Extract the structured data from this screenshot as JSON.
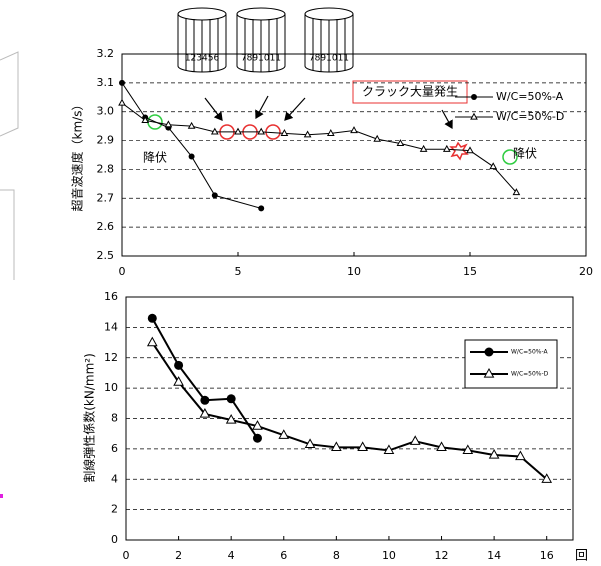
{
  "chart_data": [
    {
      "type": "line",
      "ylabel": "超音波速度（km/s）",
      "xlim": [
        0,
        20
      ],
      "ylim": [
        2.5,
        3.2
      ],
      "xticks": [
        0,
        5,
        10,
        15,
        20
      ],
      "yticks": [
        2.5,
        2.6,
        2.7,
        2.8,
        2.9,
        {
          "value": 3,
          "label": "3.0"
        },
        3.1,
        3.2
      ],
      "grid": true,
      "legend": "upper right",
      "annotations": [
        "クラック大量発生",
        "降伏",
        "降伏"
      ],
      "cylinder_labels": [
        "123456",
        "7891011",
        "7891011"
      ],
      "series": [
        {
          "name": "W/C=50%-A",
          "color": "#000000",
          "marker": "circle",
          "x": [
            0,
            1,
            2,
            3,
            4,
            6
          ],
          "values": [
            3.1,
            2.98,
            2.945,
            2.845,
            2.71,
            2.665
          ]
        },
        {
          "name": "W/C=50%-D",
          "color": "#000000",
          "marker": "triangle",
          "x": [
            0,
            1,
            2,
            3,
            4,
            5,
            6,
            7,
            8,
            9,
            10,
            11,
            12,
            13,
            14,
            15,
            16,
            17
          ],
          "values": [
            3.03,
            2.97,
            2.955,
            2.95,
            2.93,
            2.93,
            2.93,
            2.925,
            2.92,
            2.925,
            2.935,
            2.905,
            2.89,
            2.87,
            2.87,
            2.865,
            2.81,
            2.72
          ]
        }
      ]
    },
    {
      "type": "line",
      "ylabel": "割線弾性係数(kN/mm²)",
      "xunit": "回",
      "xlim": [
        0,
        17
      ],
      "ylim": [
        0,
        16
      ],
      "xticks": [
        0,
        2,
        4,
        6,
        8,
        10,
        12,
        14,
        16
      ],
      "yticks": [
        0,
        2,
        4,
        6,
        8,
        10,
        12,
        14,
        16
      ],
      "grid": true,
      "legend": "upper right",
      "series": [
        {
          "name": "W/C=50%-A",
          "color": "#000000",
          "marker": "circle",
          "x": [
            1,
            2,
            3,
            4,
            5
          ],
          "values": [
            14.6,
            11.5,
            9.2,
            9.3,
            6.7
          ]
        },
        {
          "name": "W/C=50%-D",
          "color": "#000000",
          "marker": "triangle",
          "x": [
            1,
            2,
            3,
            4,
            5,
            6,
            7,
            8,
            9,
            10,
            11,
            12,
            13,
            14,
            15,
            16
          ],
          "values": [
            13,
            10.4,
            8.3,
            7.9,
            7.5,
            6.9,
            6.3,
            6.1,
            6.1,
            5.9,
            6.5,
            6.1,
            5.9,
            5.6,
            5.5,
            4
          ]
        }
      ]
    }
  ]
}
